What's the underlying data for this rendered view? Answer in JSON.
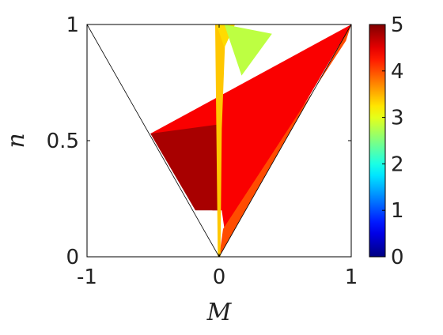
{
  "chart_data": {
    "type": "region",
    "xlabel": "M",
    "ylabel": "n",
    "xlim": [
      -1,
      1
    ],
    "ylim": [
      0,
      1
    ],
    "xticks": [
      -1,
      0,
      1
    ],
    "yticks": [
      0,
      0.5,
      1
    ],
    "colormap": "jet",
    "clim": [
      0,
      5
    ],
    "cticks": [
      0,
      1,
      2,
      3,
      4,
      5
    ],
    "regions": [
      {
        "x": [
          -0.52,
          1,
          0.05,
          0.02,
          -0.05
        ],
        "y": [
          0.53,
          1,
          0.08,
          0.2,
          0.2
        ],
        "value": 4.4
      },
      {
        "x": [
          -0.52,
          0,
          0,
          -0.18
        ],
        "y": [
          0.53,
          0.57,
          0.2,
          0.2
        ],
        "value": 4.8
      },
      {
        "x": [
          0,
          1,
          0.96,
          0.03
        ],
        "y": [
          0,
          1,
          0.93,
          0.12
        ],
        "value": 4.0
      },
      {
        "x": [
          -0.03,
          0.05,
          0.02,
          0.01,
          -0.01
        ],
        "y": [
          1,
          1,
          0.55,
          0,
          0
        ],
        "value": 3.4
      },
      {
        "x": [
          -0.02,
          0.12,
          0.04
        ],
        "y": [
          1,
          1,
          0.9
        ],
        "value": 3.3
      },
      {
        "x": [
          0.04,
          0.4,
          0.17
        ],
        "y": [
          1,
          0.96,
          0.78
        ],
        "value": 2.8
      }
    ]
  }
}
